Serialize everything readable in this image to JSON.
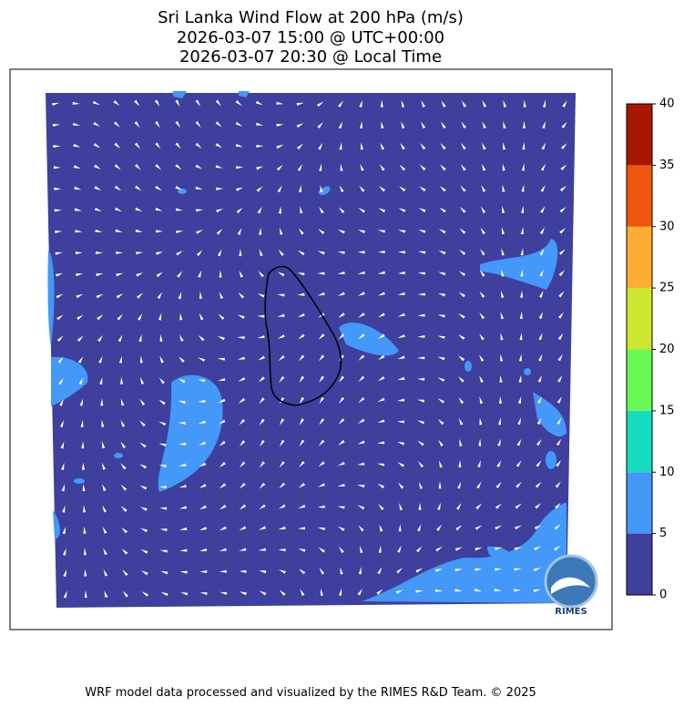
{
  "title": [
    "Sri Lanka Wind Flow at 200 hPa (m/s)",
    "2026-03-07 15:00 @ UTC+00:00",
    "2026-03-07 20:30 @ Local Time"
  ],
  "colorbar": {
    "ticks": [
      0,
      5,
      10,
      15,
      20,
      25,
      30,
      35,
      40
    ],
    "colors": [
      "#3f3f9e",
      "#4398f8",
      "#18dcc0",
      "#69f955",
      "#cde630",
      "#fbad34",
      "#f05510",
      "#a81800"
    ]
  },
  "logo_text": "RIMES",
  "footer": "WRF model data processed and visualized by the RIMES R&D Team. © 2025"
}
